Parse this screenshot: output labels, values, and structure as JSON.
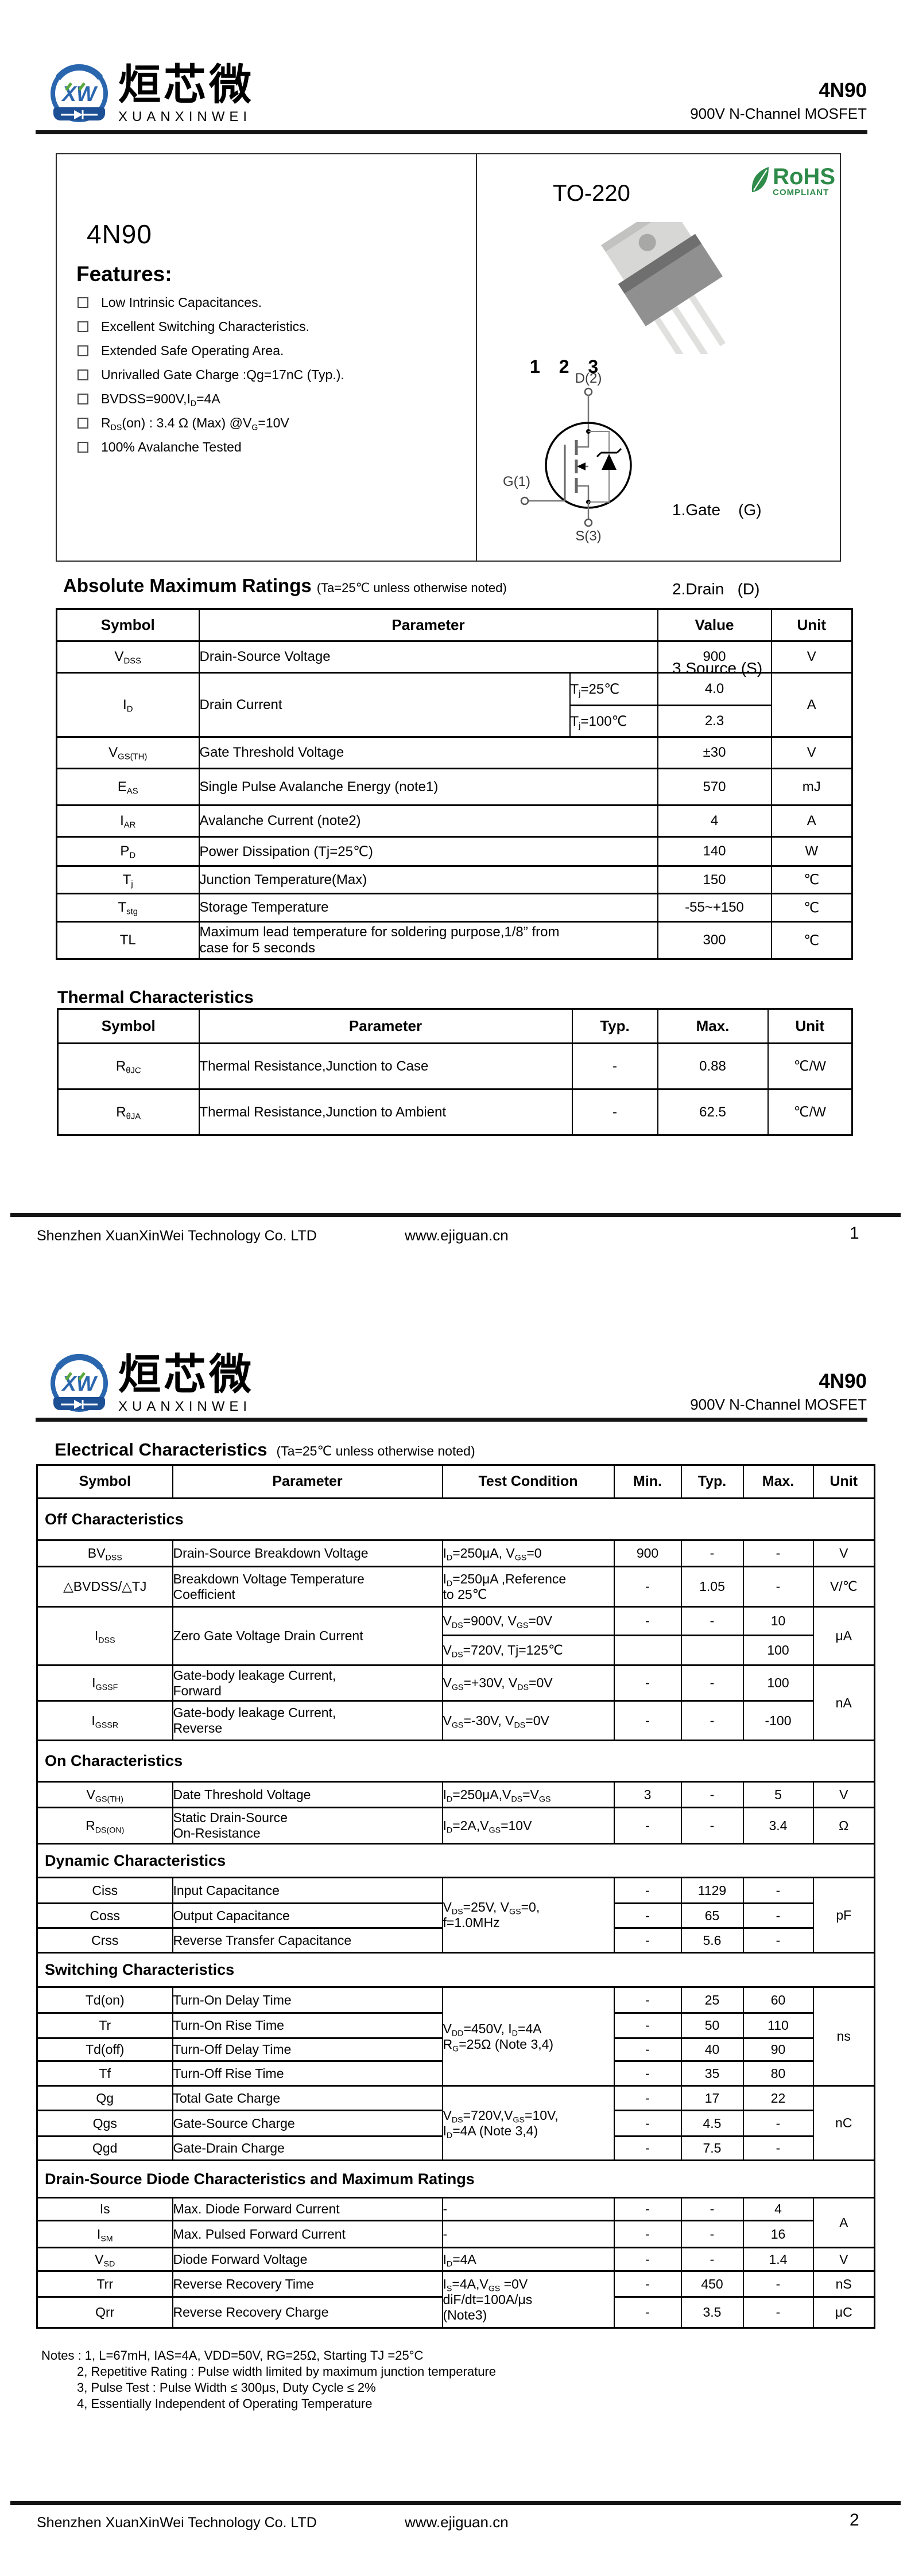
{
  "colors": {
    "brand_blue": "#2a66ae",
    "logo_band_blue": "#1d4f95",
    "logo_green": "#5aa83e",
    "rohs_green": "#2e8b4a",
    "ink": "#000000"
  },
  "header": {
    "brand_cn": "烜芯微",
    "brand_en": "XUANXINWEI",
    "part": "4N90",
    "subtitle": "900V N-Channel MOSFET"
  },
  "page1": {
    "box": {
      "part": "4N90",
      "features_title": "Features:",
      "features": [
        "Low Intrinsic Capacitances.",
        "Excellent Switching Characteristics.",
        "Extended Safe Operating Area.",
        "Unrivalled Gate Charge :Qg=17nC (Typ.).",
        "BVDSS=900V,I{D}=4A",
        "R{DS}(on) : 3.4 Ω (Max) @V{G}=10V",
        "100% Avalanche Tested"
      ],
      "package_name": "TO-220",
      "rohs_title": "RoHS",
      "rohs_subtitle": "COMPLIANT",
      "pin_numbers": "1 2 3",
      "pin_d": "D(2)",
      "pin_g": "G(1)",
      "pin_s": "S(3)",
      "legend": [
        "1.Gate    (G)",
        "2.Drain   (D)",
        "3.Source (S)"
      ]
    },
    "amr": {
      "title": "Absolute Maximum Ratings",
      "note": "(Ta=25℃ unless otherwise noted)",
      "headers": [
        "Symbol",
        "Parameter",
        "Value",
        "Unit"
      ],
      "rows": {
        "vdss": {
          "sym": "V{DSS}",
          "param": "Drain-Source Voltage",
          "value": "900",
          "unit": "V"
        },
        "id": {
          "sym": "I{D}",
          "param": "Drain Current",
          "cond1": "T{j}=25℃",
          "value1": "4.0",
          "cond2": "T{j}=100℃",
          "value2": "2.3",
          "unit": "A"
        },
        "vgsth": {
          "sym": "V{GS(TH)}",
          "param": "Gate Threshold Voltage",
          "value": "±30",
          "unit": "V"
        },
        "eas": {
          "sym": "E{AS}",
          "param": "Single Pulse Avalanche Energy (note1)",
          "value": "570",
          "unit": "mJ"
        },
        "iar": {
          "sym": "I{AR}",
          "param": "Avalanche Current (note2)",
          "value": "4",
          "unit": "A"
        },
        "pd": {
          "sym": "P{D}",
          "param": "Power Dissipation (Tj=25℃)",
          "value": "140",
          "unit": "W"
        },
        "tj": {
          "sym": "T{j}",
          "param": "Junction Temperature(Max)",
          "value": "150",
          "unit": "℃"
        },
        "tstg": {
          "sym": "T{stg}",
          "param": "Storage Temperature",
          "value": "-55~+150",
          "unit": "℃"
        },
        "tl": {
          "sym": "TL",
          "param": "Maximum lead temperature for soldering purpose,1/8” from\ncase for 5 seconds",
          "value": "300",
          "unit": "℃"
        }
      }
    },
    "thermal": {
      "title": "Thermal Characteristics",
      "headers": [
        "Symbol",
        "Parameter",
        "Typ.",
        "Max.",
        "Unit"
      ],
      "rows": [
        {
          "sym": "R{θJC}",
          "param": "Thermal Resistance,Junction to Case",
          "typ": "-",
          "max": "0.88",
          "unit": "℃/W"
        },
        {
          "sym": "R{θJA}",
          "param": "Thermal Resistance,Junction to Ambient",
          "typ": "-",
          "max": "62.5",
          "unit": "℃/W"
        }
      ]
    },
    "footer": {
      "company": "Shenzhen XuanXinWei Technology Co. LTD",
      "website": "www.ejiguan.cn",
      "page": "1"
    }
  },
  "page2": {
    "ec": {
      "title": "Electrical Characteristics",
      "note": "(Ta=25℃ unless otherwise noted)",
      "headers": [
        "Symbol",
        "Parameter",
        "Test Condition",
        "Min.",
        "Typ.",
        "Max.",
        "Unit"
      ],
      "sections": {
        "off": "Off Characteristics",
        "on": "On Characteristics",
        "dynamic": "Dynamic Characteristics",
        "switching": "Switching Characteristics",
        "diode": "Drain-Source Diode Characteristics and Maximum Ratings"
      },
      "rows": {
        "bvdss": {
          "sym": "BV{DSS}",
          "param": "Drain-Source Breakdown Voltage",
          "cond": "I{D}=250μA,  V{GS}=0",
          "min": "900",
          "typ": "-",
          "max": "-",
          "unit": "V"
        },
        "bvtc": {
          "sym": "△BVDSS/△TJ",
          "param": "Breakdown Voltage Temperature\nCoefficient",
          "cond": "I{D}=250μA ,Reference\n to 25℃",
          "min": "-",
          "typ": "1.05",
          "max": "-",
          "unit": "V/℃"
        },
        "idss": {
          "sym": "I{DSS}",
          "param": "Zero Gate Voltage Drain Current",
          "cond1": "V{DS}=900V, V{GS}=0V",
          "min1": "-",
          "typ1": "-",
          "max1": "10",
          "cond2": "V{DS}=720V, Tj=125℃",
          "min2": "",
          "typ2": "",
          "max2": "100",
          "unit": "μA"
        },
        "igssf": {
          "sym": "I{GSSF}",
          "param": "Gate-body leakage Current,\nForward",
          "cond": "V{GS}=+30V, V{DS}=0V",
          "min": "-",
          "typ": "-",
          "max": "100",
          "unit": "nA"
        },
        "igssr": {
          "sym": "I{GSSR}",
          "param": "Gate-body leakage Current,\nReverse",
          "cond": "V{GS}=-30V, V{DS}=0V",
          "min": "-",
          "typ": "-",
          "max": "-100"
        },
        "vgsth": {
          "sym": "V{GS(TH)}",
          "param": "Date Threshold Voltage",
          "cond": "I{D}=250μA,V{DS}=V{GS}",
          "min": "3",
          "typ": "-",
          "max": "5",
          "unit": "V"
        },
        "rdson": {
          "sym": "R{DS(ON)}",
          "param": "Static Drain-Source\nOn-Resistance",
          "cond": "I{D}=2A,V{GS}=10V",
          "min": "-",
          "typ": "-",
          "max": "3.4",
          "unit": "Ω"
        },
        "cap_cond": "V{DS}=25V,  V{GS}=0,\nf=1.0MHz",
        "cap_unit": "pF",
        "ciss": {
          "sym": "Ciss",
          "param": "Input Capacitance",
          "min": "-",
          "typ": "1129",
          "max": "-"
        },
        "coss": {
          "sym": "Coss",
          "param": "Output Capacitance",
          "min": "-",
          "typ": "65",
          "max": "-"
        },
        "crss": {
          "sym": "Crss",
          "param": "Reverse Transfer Capacitance",
          "min": "-",
          "typ": "5.6",
          "max": "-"
        },
        "sw_cond": "V{DD}=450V,  I{D}=4A\nR{G}=25Ω (Note 3,4)",
        "sw_unit": "ns",
        "tdon": {
          "sym": "Td(on)",
          "param": "Turn-On Delay Time",
          "min": "-",
          "typ": "25",
          "max": "60"
        },
        "tr": {
          "sym": "Tr",
          "param": "Turn-On Rise Time",
          "min": "-",
          "typ": "50",
          "max": "110"
        },
        "tdoff": {
          "sym": "Td(off)",
          "param": "Turn-Off Delay Time",
          "min": "-",
          "typ": "40",
          "max": "90"
        },
        "tf": {
          "sym": "Tf",
          "param": "Turn-Off Rise Time",
          "min": "-",
          "typ": "35",
          "max": "80"
        },
        "q_cond": "V{DS}=720V,V{GS}=10V,\nI{D}=4A (Note 3,4)",
        "q_unit": "nC",
        "qg": {
          "sym": "Qg",
          "param": "Total Gate Charge",
          "min": "-",
          "typ": "17",
          "max": "22"
        },
        "qgs": {
          "sym": "Qgs",
          "param": "Gate-Source Charge",
          "min": "-",
          "typ": "4.5",
          "max": "-"
        },
        "qgd": {
          "sym": "Qgd",
          "param": "Gate-Drain Charge",
          "min": "-",
          "typ": "7.5",
          "max": "-"
        },
        "is": {
          "sym": "Is",
          "param": "Max. Diode Forward Current",
          "cond": "-",
          "min": "-",
          "typ": "-",
          "max": "4",
          "unit": "A"
        },
        "ism": {
          "sym": "I{SM}",
          "param": "Max. Pulsed Forward Current",
          "cond": "-",
          "min": "-",
          "typ": "-",
          "max": "16"
        },
        "vsd": {
          "sym": "V{SD}",
          "param": "Diode Forward Voltage",
          "cond": "I{D}=4A",
          "min": "-",
          "typ": "-",
          "max": "1.4",
          "unit": "V"
        },
        "rr_cond": "I{S}=4A,V{GS} =0V\ndiF/dt=100A/μs\n(Note3)",
        "trr": {
          "sym": "Trr",
          "param": "Reverse Recovery Time",
          "min": "-",
          "typ": "450",
          "max": "-",
          "unit": "nS"
        },
        "qrr": {
          "sym": "Qrr",
          "param": "Reverse Recovery Charge",
          "min": "-",
          "typ": "3.5",
          "max": "-",
          "unit": "μC"
        }
      }
    },
    "notes": [
      "Notes : 1, L=67mH, IAS=4A, VDD=50V, RG=25Ω, Starting TJ =25°C",
      "2, Repetitive Rating : Pulse width limited by maximum junction temperature",
      "3, Pulse Test : Pulse Width ≤ 300μs, Duty Cycle ≤ 2%",
      "4, Essentially Independent of Operating Temperature"
    ],
    "footer": {
      "company": "Shenzhen XuanXinWei Technology Co. LTD",
      "website": "www.ejiguan.cn",
      "page": "2"
    }
  }
}
